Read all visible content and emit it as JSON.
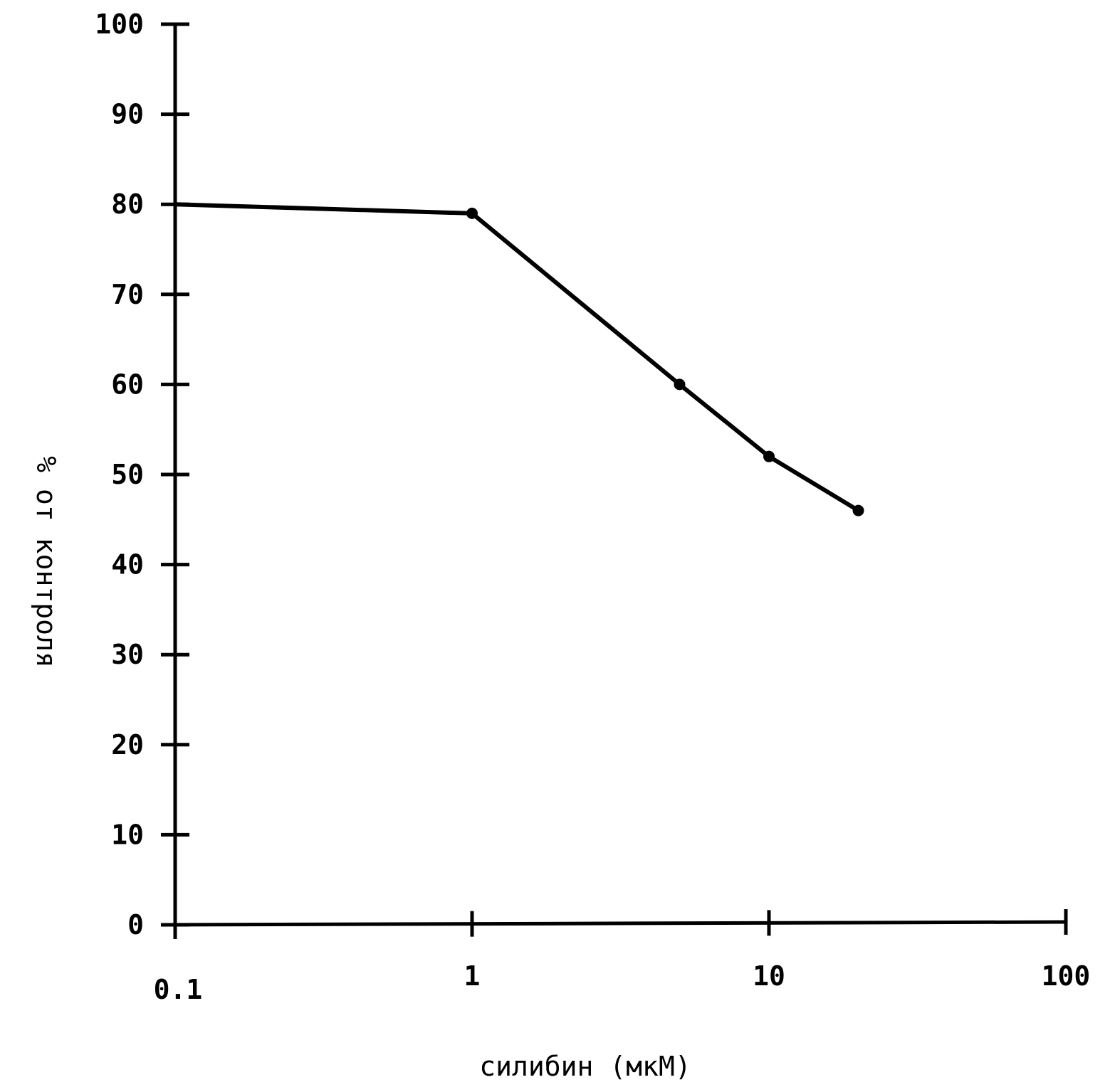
{
  "chart_data": {
    "type": "line",
    "title": "",
    "xlabel": "силибин  (мкМ)",
    "ylabel": "% от контроля",
    "x_scale": "log",
    "xlim": [
      0.1,
      100
    ],
    "ylim": [
      0,
      100
    ],
    "x_ticks": [
      0.1,
      1,
      10,
      100
    ],
    "x_tick_labels": [
      "0.1",
      "1",
      "10",
      "100"
    ],
    "y_ticks": [
      0,
      10,
      20,
      30,
      40,
      50,
      60,
      70,
      80,
      90,
      100
    ],
    "y_tick_labels": [
      "0",
      "10",
      "20",
      "30",
      "40",
      "50",
      "60",
      "70",
      "80",
      "90",
      "100"
    ],
    "grid": false,
    "series": [
      {
        "x": [
          0.1,
          1,
          5,
          10,
          20
        ],
        "y": [
          80,
          79,
          60,
          52,
          46
        ]
      }
    ]
  }
}
